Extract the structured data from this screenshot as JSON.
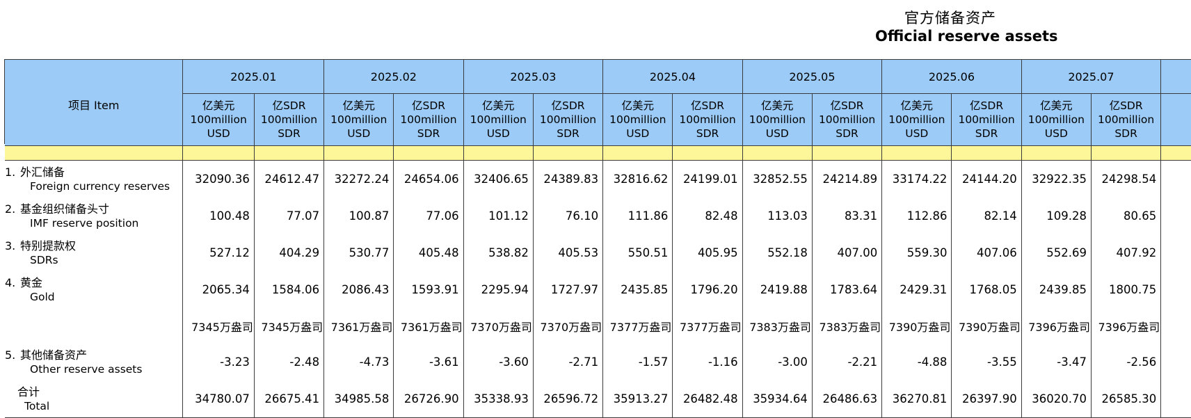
{
  "title": {
    "zh": "官方储备资产",
    "en": "Official reserve assets"
  },
  "item_header": "项目  Item",
  "months": [
    "2025.01",
    "2025.02",
    "2025.03",
    "2025.04",
    "2025.05",
    "2025.06",
    "2025.07"
  ],
  "units": {
    "usd": {
      "l1": "亿美元",
      "l2": "100million",
      "l3": "USD"
    },
    "sdr": {
      "l1": "亿SDR",
      "l2": "100million",
      "l3": "SDR"
    }
  },
  "rows": [
    {
      "no": "1.",
      "zh": "外汇储备",
      "en": "Foreign currency reserves",
      "values": [
        "32090.36",
        "24612.47",
        "32272.24",
        "24654.06",
        "32406.65",
        "24389.83",
        "32816.62",
        "24199.01",
        "32852.55",
        "24214.89",
        "33174.22",
        "24144.20",
        "32922.35",
        "24298.54"
      ]
    },
    {
      "no": "2.",
      "zh": "基金组织储备头寸",
      "en": "IMF reserve position",
      "values": [
        "100.48",
        "77.07",
        "100.87",
        "77.06",
        "101.12",
        "76.10",
        "111.86",
        "82.48",
        "113.03",
        "83.31",
        "112.86",
        "82.14",
        "109.28",
        "80.65"
      ]
    },
    {
      "no": "3.",
      "zh": "特别提款权",
      "en": "SDRs",
      "values": [
        "527.12",
        "404.29",
        "530.77",
        "405.48",
        "538.82",
        "405.53",
        "550.51",
        "405.95",
        "552.18",
        "407.00",
        "559.30",
        "407.06",
        "552.69",
        "407.92"
      ]
    },
    {
      "no": "4.",
      "zh": "黄金",
      "en": "Gold",
      "values": [
        "2065.34",
        "1584.06",
        "2086.43",
        "1593.91",
        "2295.94",
        "1727.97",
        "2435.85",
        "1796.20",
        "2419.88",
        "1783.64",
        "2429.31",
        "1768.05",
        "2439.85",
        "1800.75"
      ]
    },
    {
      "no": "",
      "zh": "",
      "en": "",
      "values": [
        "7345万盎司",
        "7345万盎司",
        "7361万盎司",
        "7361万盎司",
        "7370万盎司",
        "7370万盎司",
        "7377万盎司",
        "7377万盎司",
        "7383万盎司",
        "7383万盎司",
        "7390万盎司",
        "7390万盎司",
        "7396万盎司",
        "7396万盎司"
      ]
    },
    {
      "no": "5.",
      "zh": "其他储备资产",
      "en": "Other reserve assets",
      "values": [
        "-3.23",
        "-2.48",
        "-4.73",
        "-3.61",
        "-3.60",
        "-2.71",
        "-1.57",
        "-1.16",
        "-3.00",
        "-2.21",
        "-4.88",
        "-3.55",
        "-3.47",
        "-2.56"
      ]
    },
    {
      "no": "",
      "zh": "合计",
      "en": "Total",
      "values": [
        "34780.07",
        "26675.41",
        "34985.58",
        "26726.90",
        "35338.93",
        "26596.72",
        "35913.27",
        "26482.48",
        "35934.64",
        "26486.63",
        "36270.81",
        "26397.90",
        "36020.70",
        "26585.30"
      ]
    }
  ]
}
